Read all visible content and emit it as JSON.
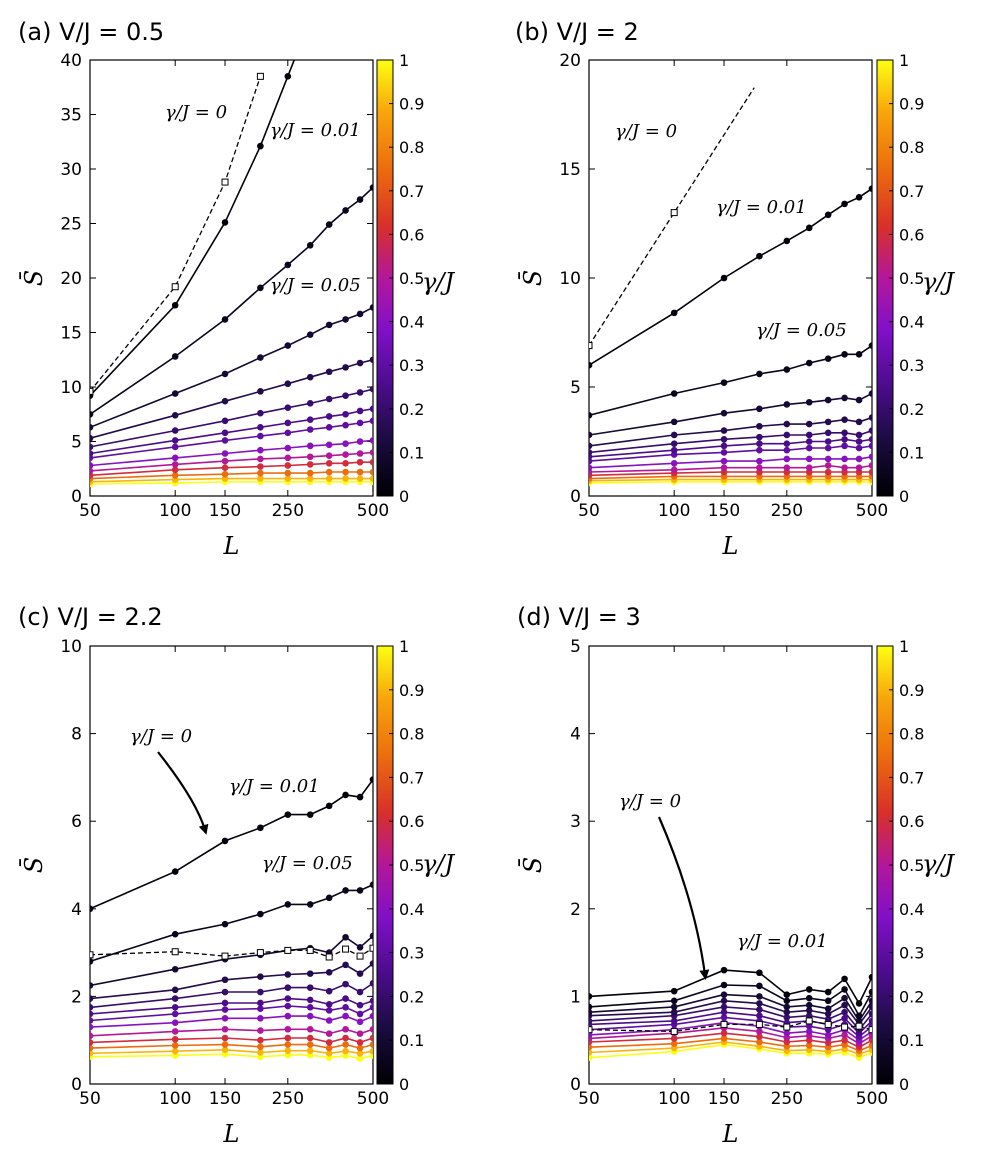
{
  "chart_data": [
    {
      "type": "line",
      "panel_label": "(a)",
      "title": "V/J = 0.5",
      "xlabel": "L",
      "ylabel": "S̄",
      "xscale": "log",
      "xticks": [
        50,
        100,
        150,
        250,
        500
      ],
      "ylim": [
        0,
        40
      ],
      "yticks": [
        0,
        5,
        10,
        15,
        20,
        25,
        30,
        35,
        40
      ],
      "colorbar": {
        "label": "γ/J",
        "range": [
          0,
          1
        ],
        "ticks": [
          "0",
          "0.1",
          "0.2",
          "0.3",
          "0.4",
          "0.5",
          "0.6",
          "0.7",
          "0.8",
          "0.9",
          "1"
        ]
      },
      "annotations": [
        "γ/J = 0",
        "γ/J = 0.01",
        "γ/J = 0.05"
      ],
      "series_gamma0": {
        "x": [
          50,
          100,
          150,
          200
        ],
        "values": [
          9.6,
          19.2,
          28.8,
          38.5
        ],
        "style": "dashed",
        "marker": "open-square"
      },
      "x": [
        50,
        100,
        150,
        200,
        250,
        300,
        350,
        400,
        450,
        500
      ],
      "series": [
        {
          "gamma": 0.01,
          "values": [
            9.2,
            17.5,
            25.1,
            32.1,
            38.5,
            null,
            null,
            null,
            null,
            null
          ],
          "extends_above": true
        },
        {
          "gamma": 0.05,
          "values": [
            7.5,
            12.8,
            16.2,
            19.1,
            21.2,
            23.0,
            24.9,
            26.2,
            27.2,
            28.3
          ]
        },
        {
          "gamma": 0.1,
          "values": [
            6.3,
            9.4,
            11.2,
            12.7,
            13.8,
            14.8,
            15.7,
            16.2,
            16.7,
            17.3
          ]
        },
        {
          "gamma": 0.15,
          "values": [
            5.3,
            7.4,
            8.7,
            9.6,
            10.3,
            10.9,
            11.4,
            11.8,
            12.2,
            12.5
          ]
        },
        {
          "gamma": 0.2,
          "values": [
            4.5,
            6.0,
            6.9,
            7.6,
            8.1,
            8.5,
            8.9,
            9.2,
            9.5,
            9.8
          ]
        },
        {
          "gamma": 0.25,
          "values": [
            3.9,
            5.1,
            5.8,
            6.3,
            6.7,
            7.0,
            7.3,
            7.5,
            7.8,
            8.0
          ]
        },
        {
          "gamma": 0.3,
          "values": [
            3.5,
            4.5,
            5.1,
            5.5,
            5.8,
            6.1,
            6.3,
            6.5,
            6.7,
            6.9
          ]
        },
        {
          "gamma": 0.4,
          "values": [
            2.8,
            3.5,
            3.9,
            4.2,
            4.4,
            4.6,
            4.7,
            4.8,
            5.0,
            5.1
          ]
        },
        {
          "gamma": 0.5,
          "values": [
            2.3,
            2.9,
            3.2,
            3.4,
            3.5,
            3.6,
            3.7,
            3.8,
            3.9,
            4.0
          ]
        },
        {
          "gamma": 0.6,
          "values": [
            1.9,
            2.4,
            2.6,
            2.7,
            2.8,
            2.9,
            3.0,
            3.0,
            3.1,
            3.1
          ]
        },
        {
          "gamma": 0.75,
          "values": [
            1.6,
            1.9,
            2.0,
            2.1,
            2.1,
            2.1,
            2.2,
            2.2,
            2.2,
            2.2
          ]
        },
        {
          "gamma": 0.9,
          "values": [
            1.3,
            1.5,
            1.6,
            1.6,
            1.6,
            1.6,
            1.6,
            1.6,
            1.6,
            1.6
          ]
        },
        {
          "gamma": 1.0,
          "values": [
            1.1,
            1.2,
            1.3,
            1.3,
            1.3,
            1.3,
            1.3,
            1.3,
            1.3,
            1.3
          ]
        }
      ]
    },
    {
      "type": "line",
      "panel_label": "(b)",
      "title": "V/J = 2",
      "xlabel": "L",
      "ylabel": "S̄",
      "xscale": "log",
      "xticks": [
        50,
        100,
        150,
        250,
        500
      ],
      "ylim": [
        0,
        20
      ],
      "yticks": [
        0,
        5,
        10,
        15,
        20
      ],
      "colorbar": {
        "label": "γ/J",
        "range": [
          0,
          1
        ],
        "ticks": [
          "0",
          "0.1",
          "0.2",
          "0.3",
          "0.4",
          "0.5",
          "0.6",
          "0.7",
          "0.8",
          "0.9",
          "1"
        ]
      },
      "annotations": [
        "γ/J = 0",
        "γ/J = 0.01",
        "γ/J = 0.05"
      ],
      "series_gamma0": {
        "x": [
          50,
          100
        ],
        "values": [
          6.9,
          13.0
        ],
        "style": "dashed",
        "marker": "open-square",
        "extends_above": true
      },
      "x": [
        50,
        100,
        150,
        200,
        250,
        300,
        350,
        400,
        450,
        500
      ],
      "series": [
        {
          "gamma": 0.01,
          "values": [
            6.0,
            8.4,
            10.0,
            11.0,
            11.7,
            12.3,
            12.9,
            13.4,
            13.7,
            14.1
          ]
        },
        {
          "gamma": 0.05,
          "values": [
            3.7,
            4.7,
            5.2,
            5.6,
            5.8,
            6.1,
            6.3,
            6.5,
            6.5,
            6.9
          ]
        },
        {
          "gamma": 0.1,
          "values": [
            2.8,
            3.4,
            3.8,
            4.0,
            4.2,
            4.3,
            4.4,
            4.5,
            4.4,
            4.7
          ]
        },
        {
          "gamma": 0.15,
          "values": [
            2.3,
            2.8,
            3.0,
            3.2,
            3.3,
            3.3,
            3.4,
            3.5,
            3.4,
            3.6
          ]
        },
        {
          "gamma": 0.2,
          "values": [
            2.0,
            2.4,
            2.6,
            2.7,
            2.8,
            2.8,
            2.9,
            2.9,
            2.8,
            3.0
          ]
        },
        {
          "gamma": 0.25,
          "values": [
            1.8,
            2.1,
            2.3,
            2.4,
            2.4,
            2.5,
            2.5,
            2.6,
            2.5,
            2.6
          ]
        },
        {
          "gamma": 0.3,
          "values": [
            1.6,
            1.9,
            2.0,
            2.1,
            2.1,
            2.2,
            2.2,
            2.3,
            2.2,
            2.3
          ]
        },
        {
          "gamma": 0.4,
          "values": [
            1.3,
            1.5,
            1.6,
            1.6,
            1.7,
            1.7,
            1.7,
            1.7,
            1.7,
            1.8
          ]
        },
        {
          "gamma": 0.5,
          "values": [
            1.1,
            1.2,
            1.3,
            1.3,
            1.3,
            1.3,
            1.4,
            1.3,
            1.3,
            1.4
          ]
        },
        {
          "gamma": 0.6,
          "values": [
            0.95,
            1.05,
            1.1,
            1.1,
            1.1,
            1.1,
            1.1,
            1.1,
            1.1,
            1.1
          ]
        },
        {
          "gamma": 0.75,
          "values": [
            0.8,
            0.9,
            0.9,
            0.9,
            0.9,
            0.9,
            0.9,
            0.9,
            0.9,
            0.9
          ]
        },
        {
          "gamma": 0.9,
          "values": [
            0.7,
            0.75,
            0.75,
            0.75,
            0.75,
            0.75,
            0.75,
            0.75,
            0.75,
            0.75
          ]
        },
        {
          "gamma": 1.0,
          "values": [
            0.6,
            0.65,
            0.65,
            0.65,
            0.65,
            0.65,
            0.65,
            0.65,
            0.65,
            0.65
          ]
        }
      ]
    },
    {
      "type": "line",
      "panel_label": "(c)",
      "title": "V/J = 2.2",
      "xlabel": "L",
      "ylabel": "S̄",
      "xscale": "log",
      "xticks": [
        50,
        100,
        150,
        250,
        500
      ],
      "ylim": [
        0,
        10
      ],
      "yticks": [
        0,
        2,
        4,
        6,
        8,
        10
      ],
      "colorbar": {
        "label": "γ/J",
        "range": [
          0,
          1
        ],
        "ticks": [
          "0",
          "0.1",
          "0.2",
          "0.3",
          "0.4",
          "0.5",
          "0.6",
          "0.7",
          "0.8",
          "0.9",
          "1"
        ]
      },
      "annotations": [
        "γ/J = 0",
        "γ/J = 0.01",
        "γ/J = 0.05"
      ],
      "series_gamma0": {
        "x": [
          50,
          100,
          150,
          200,
          250,
          300,
          350,
          400,
          450,
          500
        ],
        "values": [
          2.95,
          3.02,
          2.92,
          3.0,
          3.05,
          3.05,
          2.9,
          3.08,
          2.92,
          3.1
        ],
        "style": "dashed",
        "marker": "open-square"
      },
      "x": [
        50,
        100,
        150,
        200,
        250,
        300,
        350,
        400,
        450,
        500
      ],
      "series": [
        {
          "gamma": 0.01,
          "values": [
            4.0,
            4.85,
            5.55,
            5.85,
            6.15,
            6.15,
            6.35,
            6.6,
            6.55,
            6.95
          ]
        },
        {
          "gamma": 0.05,
          "values": [
            2.8,
            3.42,
            3.65,
            3.88,
            4.1,
            4.1,
            4.25,
            4.42,
            4.42,
            4.55
          ]
        },
        {
          "gamma": 0.1,
          "values": [
            2.25,
            2.62,
            2.85,
            2.95,
            3.05,
            3.1,
            3.0,
            3.35,
            3.12,
            3.38
          ]
        },
        {
          "gamma": 0.15,
          "values": [
            1.95,
            2.15,
            2.38,
            2.45,
            2.5,
            2.52,
            2.55,
            2.72,
            2.52,
            2.75
          ]
        },
        {
          "gamma": 0.2,
          "values": [
            1.75,
            1.95,
            2.1,
            2.1,
            2.2,
            2.2,
            2.12,
            2.28,
            2.1,
            2.3
          ]
        },
        {
          "gamma": 0.25,
          "values": [
            1.6,
            1.75,
            1.85,
            1.85,
            1.95,
            1.92,
            1.82,
            1.95,
            1.8,
            1.9
          ]
        },
        {
          "gamma": 0.3,
          "values": [
            1.45,
            1.6,
            1.7,
            1.72,
            1.78,
            1.75,
            1.68,
            1.75,
            1.6,
            1.75
          ]
        },
        {
          "gamma": 0.4,
          "values": [
            1.3,
            1.4,
            1.5,
            1.5,
            1.55,
            1.55,
            1.45,
            1.55,
            1.42,
            1.55
          ]
        },
        {
          "gamma": 0.5,
          "values": [
            1.1,
            1.2,
            1.25,
            1.22,
            1.25,
            1.25,
            1.15,
            1.25,
            1.15,
            1.25
          ]
        },
        {
          "gamma": 0.6,
          "values": [
            0.95,
            1.02,
            1.05,
            1.0,
            1.05,
            1.05,
            0.95,
            1.05,
            0.95,
            1.05
          ]
        },
        {
          "gamma": 0.75,
          "values": [
            0.82,
            0.88,
            0.9,
            0.85,
            0.9,
            0.9,
            0.82,
            0.9,
            0.82,
            0.9
          ]
        },
        {
          "gamma": 0.9,
          "values": [
            0.7,
            0.75,
            0.78,
            0.72,
            0.76,
            0.76,
            0.7,
            0.75,
            0.7,
            0.75
          ]
        },
        {
          "gamma": 1.0,
          "values": [
            0.62,
            0.65,
            0.68,
            0.62,
            0.66,
            0.66,
            0.6,
            0.65,
            0.58,
            0.65
          ]
        }
      ]
    },
    {
      "type": "line",
      "panel_label": "(d)",
      "title": "V/J = 3",
      "xlabel": "L",
      "ylabel": "S̄",
      "xscale": "log",
      "xticks": [
        50,
        100,
        150,
        250,
        500
      ],
      "ylim": [
        0,
        5
      ],
      "yticks": [
        0,
        1,
        2,
        3,
        4,
        5
      ],
      "colorbar": {
        "label": "γ/J",
        "range": [
          0,
          1
        ],
        "ticks": [
          "0",
          "0.1",
          "0.2",
          "0.3",
          "0.4",
          "0.5",
          "0.6",
          "0.7",
          "0.8",
          "0.9",
          "1"
        ]
      },
      "annotations": [
        "γ/J = 0",
        "γ/J = 0.01"
      ],
      "series_gamma0": {
        "x": [
          50,
          100,
          150,
          200,
          250,
          300,
          350,
          400,
          450,
          500
        ],
        "values": [
          0.62,
          0.6,
          0.68,
          0.68,
          0.65,
          0.72,
          0.68,
          0.65,
          0.66,
          0.62
        ],
        "style": "dashed",
        "marker": "open-square"
      },
      "x": [
        50,
        100,
        150,
        200,
        250,
        300,
        350,
        400,
        450,
        500
      ],
      "series": [
        {
          "gamma": 0.01,
          "values": [
            1.0,
            1.06,
            1.3,
            1.27,
            1.02,
            1.08,
            1.05,
            1.2,
            0.92,
            1.22
          ]
        },
        {
          "gamma": 0.05,
          "values": [
            0.88,
            0.95,
            1.13,
            1.12,
            0.95,
            0.98,
            0.95,
            1.08,
            0.78,
            1.05
          ]
        },
        {
          "gamma": 0.1,
          "values": [
            0.82,
            0.88,
            1.02,
            1.0,
            0.88,
            0.9,
            0.86,
            0.98,
            0.72,
            0.95
          ]
        },
        {
          "gamma": 0.15,
          "values": [
            0.78,
            0.82,
            0.95,
            0.92,
            0.82,
            0.84,
            0.8,
            0.9,
            0.68,
            0.88
          ]
        },
        {
          "gamma": 0.2,
          "values": [
            0.72,
            0.78,
            0.88,
            0.85,
            0.76,
            0.78,
            0.74,
            0.82,
            0.62,
            0.8
          ]
        },
        {
          "gamma": 0.25,
          "values": [
            0.68,
            0.72,
            0.82,
            0.78,
            0.7,
            0.72,
            0.68,
            0.75,
            0.58,
            0.72
          ]
        },
        {
          "gamma": 0.3,
          "values": [
            0.62,
            0.68,
            0.76,
            0.72,
            0.65,
            0.66,
            0.62,
            0.68,
            0.54,
            0.66
          ]
        },
        {
          "gamma": 0.4,
          "values": [
            0.56,
            0.62,
            0.7,
            0.66,
            0.58,
            0.6,
            0.56,
            0.62,
            0.5,
            0.6
          ]
        },
        {
          "gamma": 0.5,
          "values": [
            0.52,
            0.58,
            0.64,
            0.6,
            0.53,
            0.55,
            0.52,
            0.56,
            0.46,
            0.55
          ]
        },
        {
          "gamma": 0.6,
          "values": [
            0.48,
            0.52,
            0.58,
            0.54,
            0.48,
            0.5,
            0.47,
            0.5,
            0.42,
            0.5
          ]
        },
        {
          "gamma": 0.75,
          "values": [
            0.42,
            0.46,
            0.52,
            0.48,
            0.43,
            0.44,
            0.42,
            0.45,
            0.38,
            0.44
          ]
        },
        {
          "gamma": 0.9,
          "values": [
            0.36,
            0.41,
            0.48,
            0.43,
            0.38,
            0.39,
            0.37,
            0.4,
            0.34,
            0.39
          ]
        },
        {
          "gamma": 1.0,
          "values": [
            0.3,
            0.37,
            0.45,
            0.4,
            0.35,
            0.35,
            0.34,
            0.36,
            0.3,
            0.36
          ]
        }
      ]
    }
  ]
}
